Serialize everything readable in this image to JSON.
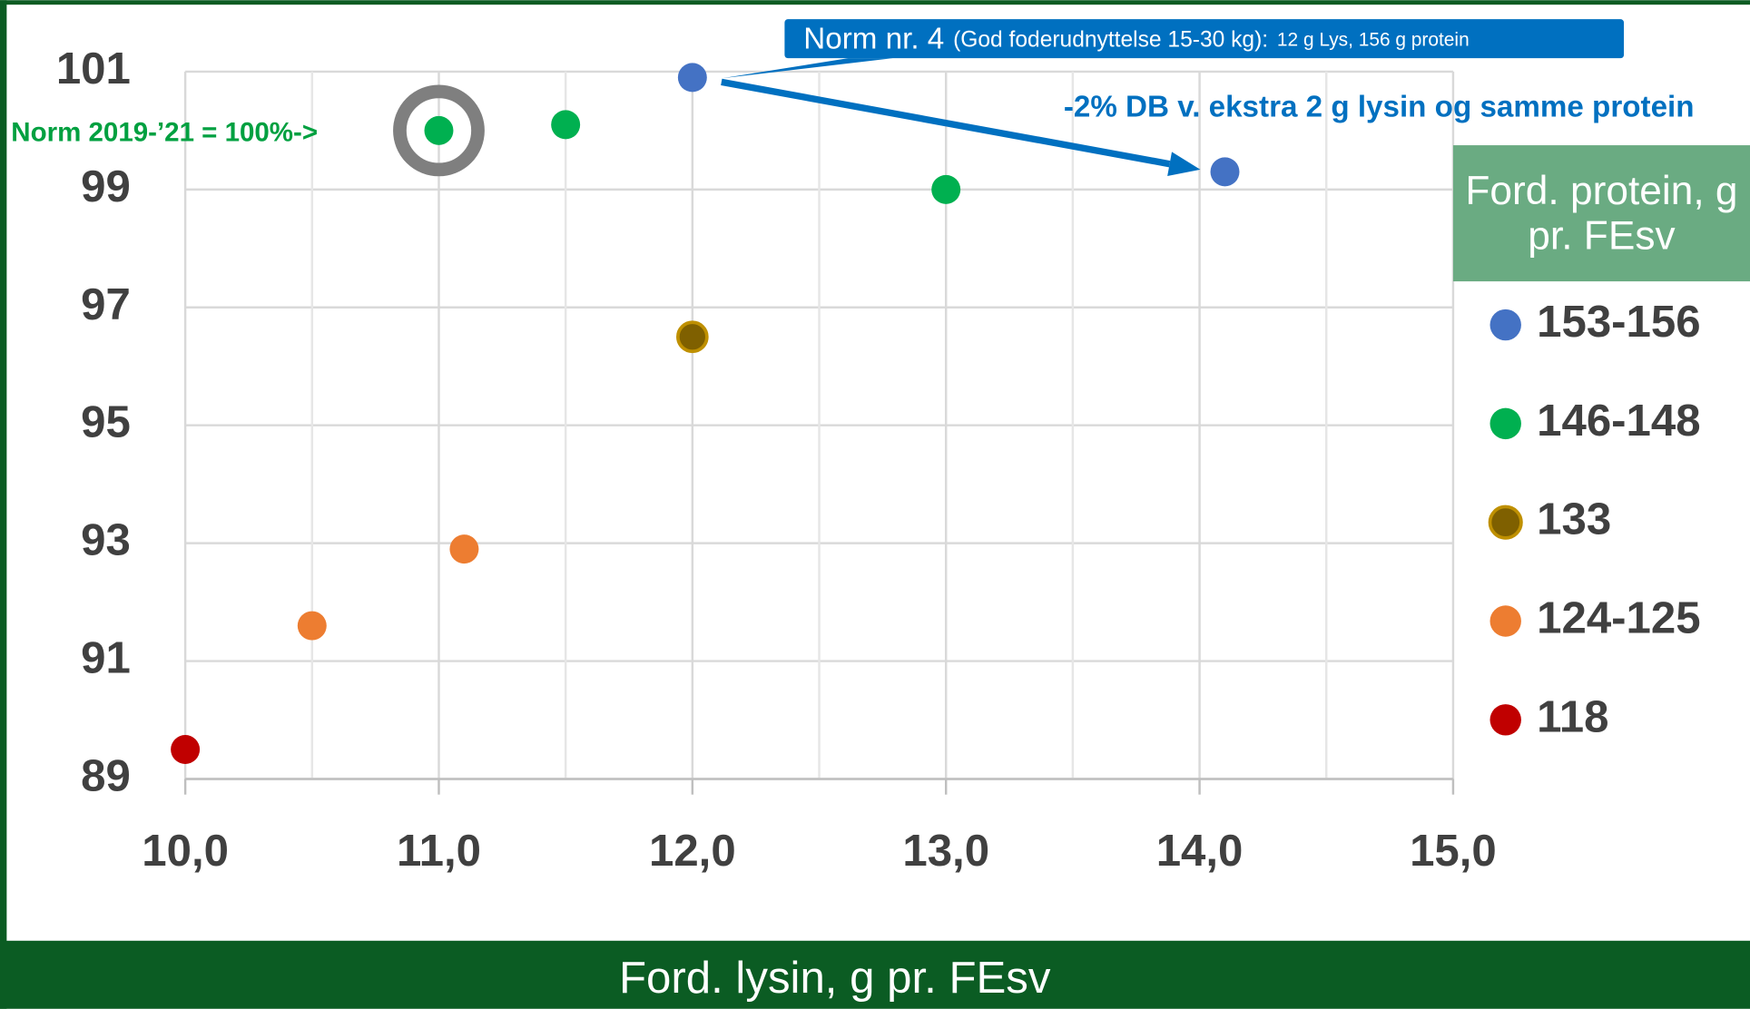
{
  "chart_data": {
    "type": "scatter",
    "x_label": "Ford. lysin, g pr. FEsv",
    "legend_title": "Ford. protein, g pr. FEsv",
    "legend": "right",
    "grid": true,
    "xlim": [
      10,
      15
    ],
    "xticks": [
      {
        "value": 10,
        "label": "10,0"
      },
      {
        "value": 11,
        "label": "11,0"
      },
      {
        "value": 12,
        "label": "12,0"
      },
      {
        "value": 13,
        "label": "13,0"
      },
      {
        "value": 14,
        "label": "14,0"
      },
      {
        "value": 15,
        "label": "15,0"
      }
    ],
    "xminorticks": [
      10.5,
      11.5,
      12.5,
      13.5,
      14.5
    ],
    "ylim": [
      89,
      101
    ],
    "yticks": [
      89,
      91,
      93,
      95,
      97,
      99,
      101
    ],
    "series": [
      {
        "name": "153-156",
        "color": "#4472c4",
        "x": [
          12.0,
          14.1
        ],
        "y": [
          100.9,
          99.3
        ]
      },
      {
        "name": "146-148",
        "color": "#00b050",
        "x": [
          11.0,
          11.5,
          13.0
        ],
        "y": [
          100.0,
          100.1,
          99.0
        ]
      },
      {
        "name": "133",
        "color": "#7f6000",
        "x": [
          12.0
        ],
        "y": [
          96.5
        ]
      },
      {
        "name": "124-125",
        "color": "#ed7d31",
        "x": [
          10.5,
          11.1
        ],
        "y": [
          91.6,
          92.9
        ]
      },
      {
        "name": "118",
        "color": "#c00000",
        "x": [
          10.0
        ],
        "y": [
          89.5
        ]
      }
    ],
    "annotations": {
      "norm4_main": "Norm nr. 4",
      "norm4_paren": "(God foderudnyttelse 15-30 kg):",
      "norm4_detail": "12 g Lys, 156 g protein",
      "arrow_note": "-2% DB v. ekstra 2 g lysin og samme protein",
      "norm_ref": "Norm 2019-’21 = 100%->"
    }
  }
}
